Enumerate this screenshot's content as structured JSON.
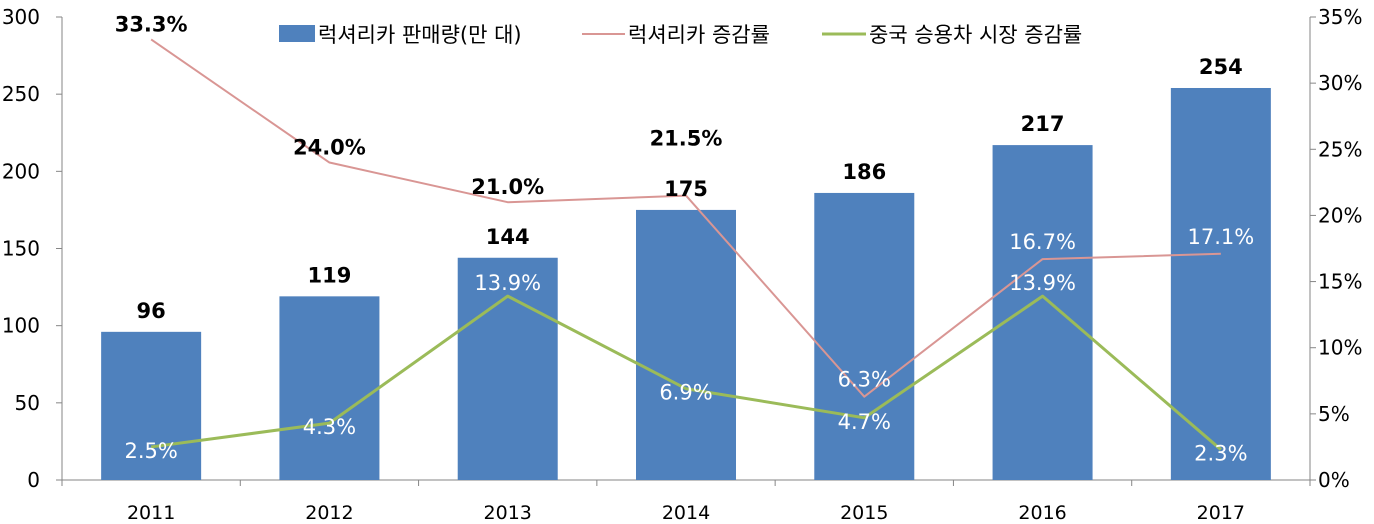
{
  "chart_data": {
    "type": "bar",
    "categories": [
      "2011",
      "2012",
      "2013",
      "2014",
      "2015",
      "2016",
      "2017"
    ],
    "series": [
      {
        "name": "럭셔리카 판매량(만 대)",
        "type": "bar",
        "axis": "left",
        "values": [
          96,
          119,
          144,
          175,
          186,
          217,
          254
        ],
        "labels": [
          "96",
          "119",
          "144",
          "175",
          "186",
          "217",
          "254"
        ],
        "color": "#4F81BD"
      },
      {
        "name": "럭셔리카 증감률",
        "type": "line",
        "axis": "right",
        "values": [
          33.3,
          24.0,
          21.0,
          21.5,
          6.3,
          16.7,
          17.1
        ],
        "labels": [
          "33.3%",
          "24.0%",
          "21.0%",
          "21.5%",
          "6.3%",
          "16.7%",
          "17.1%"
        ],
        "color": "#D99694"
      },
      {
        "name": "중국 승용차 시장 증감률",
        "type": "line",
        "axis": "right",
        "values": [
          2.5,
          4.3,
          13.9,
          6.9,
          4.7,
          13.9,
          2.3
        ],
        "labels": [
          "2.5%",
          "4.3%",
          "13.9%",
          "6.9%",
          "4.7%",
          "13.9%",
          "2.3%"
        ],
        "color": "#9BBB59"
      }
    ],
    "y_left": {
      "min": 0,
      "max": 300,
      "step": 50,
      "ticks": [
        "0",
        "50",
        "100",
        "150",
        "200",
        "250",
        "300"
      ]
    },
    "y_right": {
      "min": 0,
      "max": 35,
      "step": 5,
      "ticks": [
        "0%",
        "5%",
        "10%",
        "15%",
        "20%",
        "25%",
        "30%",
        "35%"
      ]
    },
    "legend_position": "top",
    "grid": false
  }
}
